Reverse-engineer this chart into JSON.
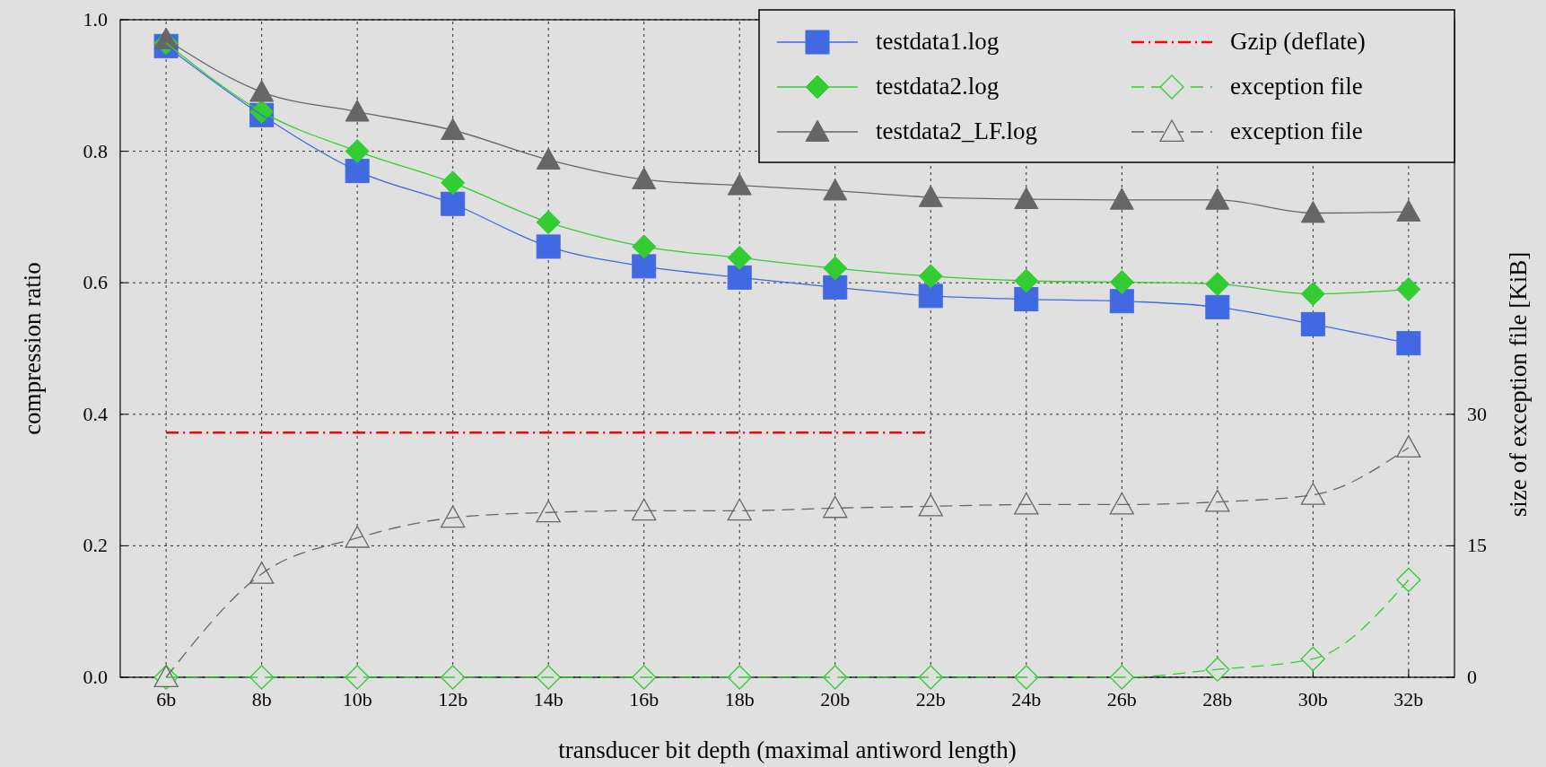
{
  "chart_data": {
    "type": "line",
    "xlabel": "transducer bit depth (maximal antiword length)",
    "ylabel": "compression ratio",
    "y2label": "size of exception file [KiB]",
    "categories": [
      "6b",
      "8b",
      "10b",
      "12b",
      "14b",
      "16b",
      "18b",
      "20b",
      "22b",
      "24b",
      "26b",
      "28b",
      "30b",
      "32b"
    ],
    "ylim": [
      0,
      1
    ],
    "yticks": [
      {
        "value": 0,
        "label": "0.0"
      },
      0.2,
      0.4,
      0.6,
      0.8,
      {
        "value": 1,
        "label": "1.0"
      }
    ],
    "y2lim": [
      0,
      75
    ],
    "y2ticks": [
      0,
      15,
      30
    ],
    "grid": true,
    "legend": "top right",
    "series": [
      {
        "name": "testdata1.log",
        "color": "#4169e1",
        "marker": "square",
        "line_style": "solid",
        "values": [
          0.96,
          0.855,
          0.77,
          0.72,
          0.655,
          0.625,
          0.608,
          0.593,
          0.58,
          0.575,
          0.572,
          0.563,
          0.537,
          0.508
        ]
      },
      {
        "name": "testdata2.log",
        "color": "#33cc33",
        "marker": "diamond",
        "line_style": "solid",
        "values": [
          0.965,
          0.86,
          0.8,
          0.752,
          0.692,
          0.655,
          0.638,
          0.622,
          0.61,
          0.603,
          0.601,
          0.598,
          0.583,
          0.59
        ]
      },
      {
        "name": "testdata2_LF.log",
        "color": "#666666",
        "marker": "triangle",
        "line_style": "solid",
        "values": [
          0.97,
          0.89,
          0.86,
          0.832,
          0.787,
          0.757,
          0.748,
          0.74,
          0.73,
          0.727,
          0.726,
          0.726,
          0.706,
          0.708
        ]
      },
      {
        "name": "Gzip (deflate)",
        "color": "#ff0000",
        "marker": "none",
        "line_style": "dashdot",
        "values": [
          0.372,
          0.372,
          0.372,
          0.372,
          0.372,
          0.372,
          0.372,
          0.372,
          0.372,
          null,
          null,
          null,
          null,
          null
        ]
      },
      {
        "name": "exception file",
        "color": "#33cc33",
        "marker": "diamond",
        "line_style": "dashed",
        "axis": "y2",
        "values": [
          0,
          0,
          0,
          0,
          0,
          0,
          0,
          0,
          0,
          0,
          0,
          0.9,
          2.1,
          11.1
        ]
      },
      {
        "name": "exception file",
        "color": "#666666",
        "marker": "triangle",
        "line_style": "dashed",
        "axis": "y2",
        "values": [
          0,
          11.8,
          15.9,
          18.2,
          18.8,
          19.0,
          19.0,
          19.3,
          19.5,
          19.7,
          19.7,
          20.0,
          20.8,
          26.2
        ]
      }
    ]
  }
}
